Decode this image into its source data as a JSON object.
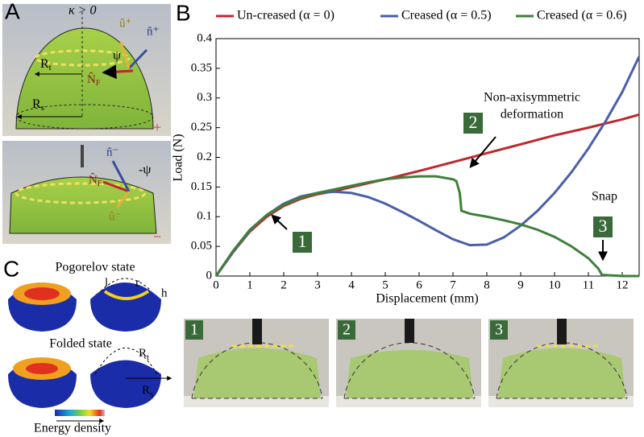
{
  "panel_a": {
    "label": "A",
    "kappa": "κ > 0",
    "rt": {
      "main": "R",
      "sub": "t"
    },
    "rs": {
      "main": "R",
      "sub": "s"
    },
    "psi": "ψ",
    "neg_psi": "-ψ",
    "nf": {
      "main": "N̂",
      "sub": "F"
    },
    "u_plus": "û⁺",
    "n_plus": "n̂⁺",
    "n_minus": "n̂⁻",
    "nf2": {
      "main": "N̂",
      "sub": "F"
    },
    "u_minus": "û⁻",
    "plus": "+",
    "minus": "−"
  },
  "panel_c": {
    "label": "C",
    "pogorelov": "Pogorelov state",
    "folded": "Folded state",
    "energy": "Energy density",
    "l": "l",
    "r": "r",
    "h": "h",
    "rt": {
      "main": "R",
      "sub": "t"
    },
    "rs": {
      "main": "R",
      "sub": "s"
    }
  },
  "panel_photos": {
    "labels": [
      "1",
      "2",
      "3"
    ]
  },
  "chart_data": {
    "type": "line",
    "panel_label": "B",
    "x_label": "Displacement (mm)",
    "y_label": "Load (N)",
    "xlim": [
      0,
      12.5
    ],
    "ylim": [
      0,
      0.4
    ],
    "xticks": [
      0,
      1,
      2,
      3,
      4,
      5,
      6,
      7,
      8,
      9,
      10,
      11,
      12
    ],
    "yticks": [
      0,
      0.05,
      0.1,
      0.15,
      0.2,
      0.25,
      0.3,
      0.35,
      0.4
    ],
    "legend": "top",
    "series": [
      {
        "name": "Un-creased (α = 0)",
        "color": "#c0272d",
        "x": [
          0,
          0.5,
          1,
          1.5,
          2,
          2.5,
          3,
          3.5,
          4,
          5,
          6,
          7,
          8,
          9,
          10,
          11,
          12,
          12.5
        ],
        "values": [
          0,
          0.04,
          0.075,
          0.1,
          0.118,
          0.13,
          0.138,
          0.143,
          0.15,
          0.163,
          0.177,
          0.192,
          0.207,
          0.222,
          0.237,
          0.25,
          0.264,
          0.272
        ]
      },
      {
        "name": "Creased (α = 0.5)",
        "color": "#4a5ea8",
        "x": [
          0,
          0.5,
          1,
          1.5,
          2,
          2.5,
          3,
          3.5,
          4,
          4.5,
          5,
          5.5,
          6,
          6.5,
          7,
          7.5,
          8,
          8.5,
          9,
          9.5,
          10,
          10.5,
          11,
          11.5,
          12,
          12.5
        ],
        "values": [
          0,
          0.04,
          0.077,
          0.103,
          0.122,
          0.134,
          0.14,
          0.142,
          0.14,
          0.133,
          0.122,
          0.108,
          0.093,
          0.077,
          0.062,
          0.052,
          0.053,
          0.065,
          0.085,
          0.11,
          0.14,
          0.175,
          0.215,
          0.26,
          0.31,
          0.37
        ]
      },
      {
        "name": "Creased (α = 0.6)",
        "color": "#3f7f3b",
        "x": [
          0,
          0.5,
          1,
          1.5,
          2,
          2.5,
          3,
          3.5,
          4,
          4.5,
          5,
          5.5,
          6,
          6.5,
          7,
          7.1,
          7.2,
          7.25,
          7.5,
          8,
          8.5,
          9,
          9.5,
          10,
          10.5,
          11,
          11.3,
          11.4,
          12,
          12.5
        ],
        "values": [
          0,
          0.042,
          0.078,
          0.103,
          0.12,
          0.132,
          0.14,
          0.146,
          0.152,
          0.158,
          0.163,
          0.166,
          0.168,
          0.168,
          0.163,
          0.16,
          0.14,
          0.11,
          0.105,
          0.1,
          0.094,
          0.087,
          0.078,
          0.066,
          0.05,
          0.03,
          0.012,
          0.002,
          0,
          0
        ]
      }
    ],
    "annotations": {
      "deformation": [
        "Non-axisymmetric",
        "deformation"
      ],
      "snap": "Snap",
      "badges": [
        "1",
        "2",
        "3"
      ]
    }
  }
}
